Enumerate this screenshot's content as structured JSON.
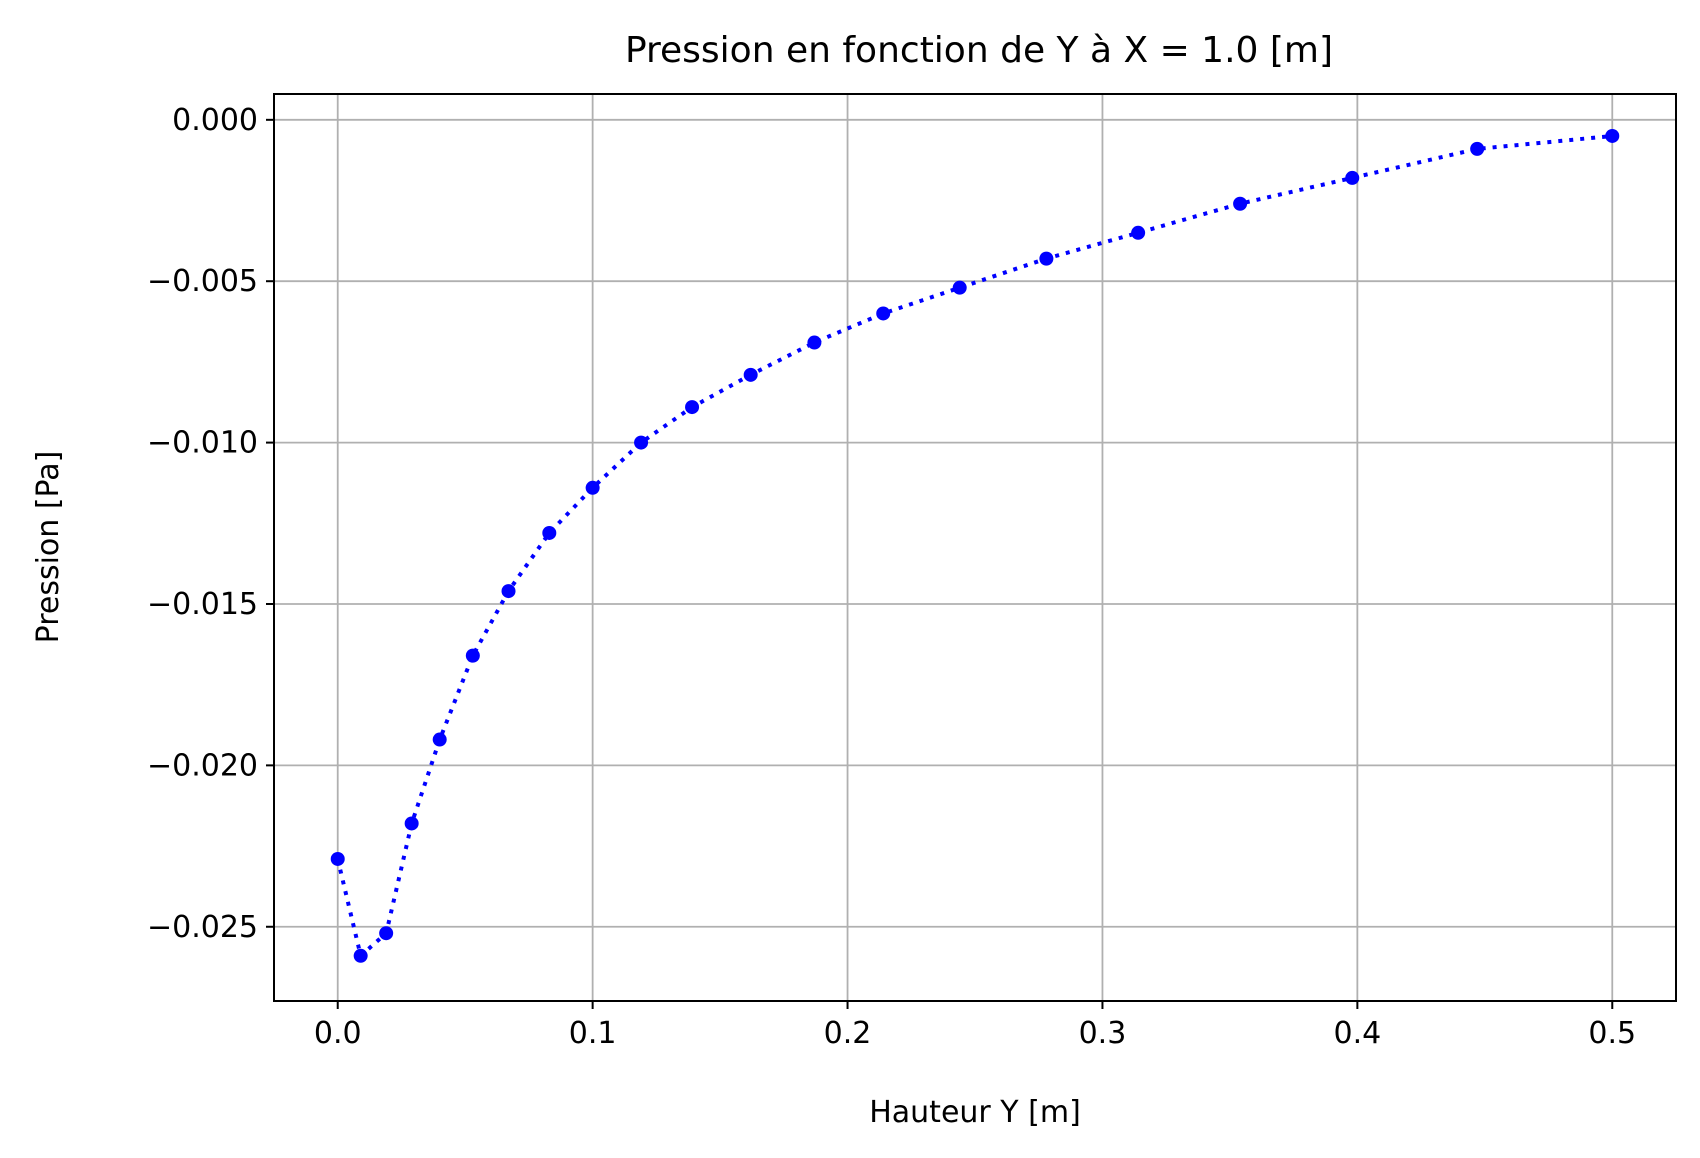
{
  "chart_data": {
    "type": "line",
    "title": "Pression en fonction de Y à X = 1.0 [m]",
    "xlabel": "Hauteur Y [m]",
    "ylabel": "Pression [Pa]",
    "xlim": [
      -0.025,
      0.525
    ],
    "ylim": [
      -0.0273,
      0.0008
    ],
    "xticks": [
      0.0,
      0.1,
      0.2,
      0.3,
      0.4,
      0.5
    ],
    "xtick_labels": [
      "0.0",
      "0.1",
      "0.2",
      "0.3",
      "0.4",
      "0.5"
    ],
    "yticks": [
      0.0,
      -0.005,
      -0.01,
      -0.015,
      -0.02,
      -0.025
    ],
    "ytick_labels": [
      "0.000",
      "−0.005",
      "−0.010",
      "−0.015",
      "−0.020",
      "−0.025"
    ],
    "grid": true,
    "series": [
      {
        "color": "#0000ff",
        "line_style": "dotted",
        "marker": "circle",
        "x": [
          0.0,
          0.009,
          0.019,
          0.029,
          0.04,
          0.053,
          0.067,
          0.083,
          0.1,
          0.119,
          0.139,
          0.162,
          0.187,
          0.214,
          0.244,
          0.278,
          0.314,
          0.354,
          0.398,
          0.447,
          0.5
        ],
        "y": [
          -0.0229,
          -0.0259,
          -0.0252,
          -0.0218,
          -0.0192,
          -0.0166,
          -0.0146,
          -0.0128,
          -0.0114,
          -0.01,
          -0.0089,
          -0.0079,
          -0.0069,
          -0.006,
          -0.0052,
          -0.0043,
          -0.0035,
          -0.0026,
          -0.0018,
          -0.0009,
          -0.0005
        ]
      }
    ]
  }
}
